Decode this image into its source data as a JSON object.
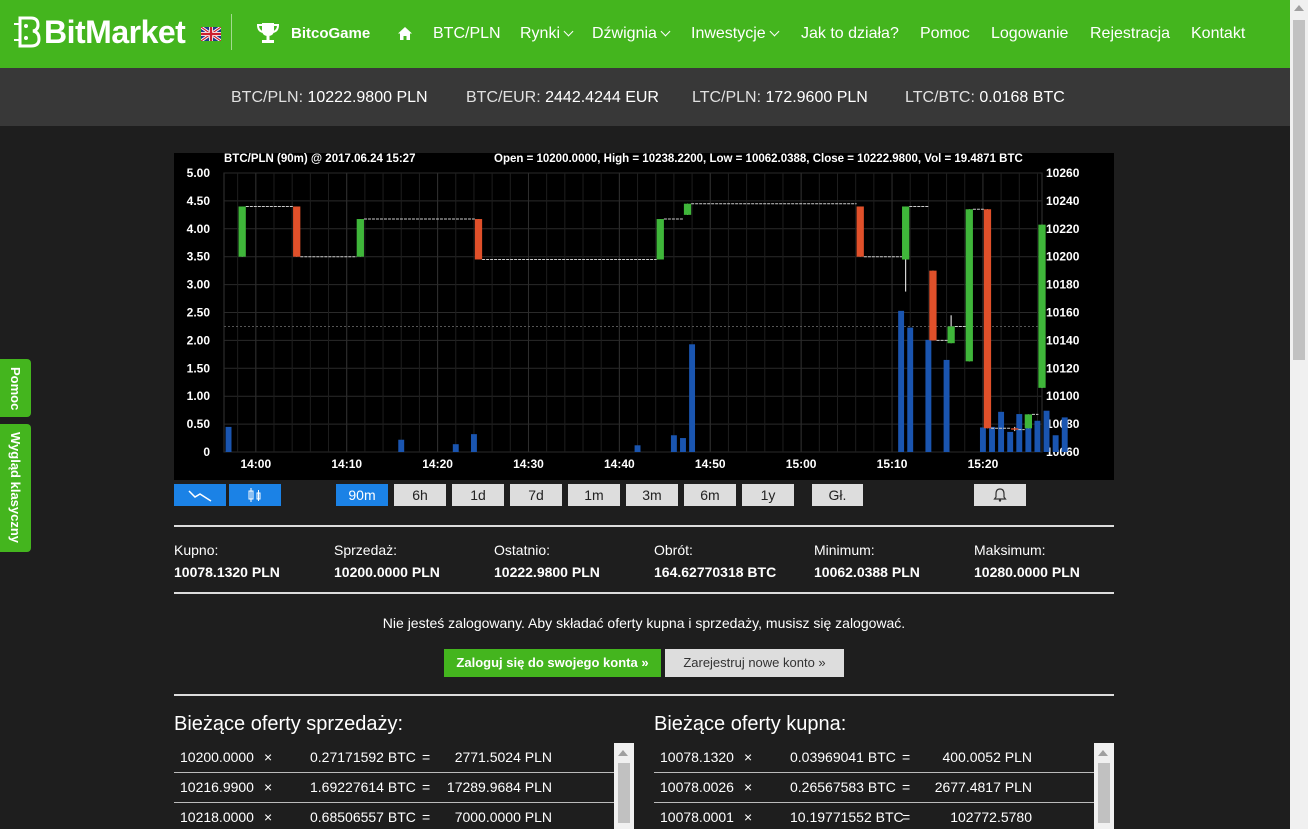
{
  "brand": {
    "name": "BitMarket"
  },
  "nav": {
    "game": "BitcoGame",
    "items": [
      {
        "label": "BTC/PLN",
        "dropdown": false
      },
      {
        "label": "Rynki",
        "dropdown": true
      },
      {
        "label": "Dźwignia",
        "dropdown": true
      },
      {
        "label": "Inwestycje",
        "dropdown": true
      },
      {
        "label": "Jak to działa?",
        "dropdown": false
      },
      {
        "label": "Pomoc",
        "dropdown": false
      },
      {
        "label": "Logowanie",
        "dropdown": false
      },
      {
        "label": "Rejestracja",
        "dropdown": false
      },
      {
        "label": "Kontakt",
        "dropdown": false
      }
    ]
  },
  "ticker": [
    {
      "pair": "BTC/PLN:",
      "value": "10222.9800 PLN"
    },
    {
      "pair": "BTC/EUR:",
      "value": "2442.4244 EUR"
    },
    {
      "pair": "LTC/PLN:",
      "value": "172.9600 PLN"
    },
    {
      "pair": "LTC/BTC:",
      "value": "0.0168 BTC"
    }
  ],
  "side_tabs": {
    "help": "Pomoc",
    "classic": "Wygląd klasyczny"
  },
  "chart_data": {
    "type": "candlestick",
    "title": "BTC/PLN (90m) @ 2017.06.24 15:27",
    "summary": "Open = 10200.0000, High = 10238.2200, Low = 10062.0388, Close = 10222.9800, Vol = 19.4871 BTC",
    "x_ticks": [
      "14:00",
      "14:10",
      "14:20",
      "14:30",
      "14:40",
      "14:50",
      "15:00",
      "15:10",
      "15:20"
    ],
    "x_tick_minutes": [
      0,
      10,
      20,
      30,
      40,
      50,
      60,
      70,
      80
    ],
    "xlim": [
      -3.5,
      86.5
    ],
    "volume_axis": {
      "ticks": [
        "5.00",
        "4.50",
        "4.00",
        "3.50",
        "3.00",
        "2.50",
        "2.00",
        "1.50",
        "1.00",
        "0.50",
        "0"
      ],
      "ylim": [
        0,
        5
      ]
    },
    "price_axis": {
      "ticks": [
        "10260",
        "10240",
        "10220",
        "10200",
        "10180",
        "10160",
        "10140",
        "10120",
        "10100",
        "10080",
        "10060"
      ],
      "ylim": [
        10060,
        10260
      ]
    },
    "midline": 10150,
    "candles": [
      {
        "t": -1.5,
        "o": 10200,
        "c": 10236,
        "h": 10236,
        "l": 10200
      },
      {
        "t": 4.5,
        "o": 10236,
        "c": 10200,
        "h": 10236,
        "l": 10200
      },
      {
        "t": 11.5,
        "o": 10200,
        "c": 10227,
        "h": 10227,
        "l": 10200
      },
      {
        "t": 24.5,
        "o": 10227,
        "c": 10198,
        "h": 10227,
        "l": 10198
      },
      {
        "t": 44.5,
        "o": 10198,
        "c": 10227,
        "h": 10227,
        "l": 10198
      },
      {
        "t": 47.5,
        "o": 10230,
        "c": 10238,
        "h": 10238,
        "l": 10230
      },
      {
        "t": 66.5,
        "o": 10236,
        "c": 10200,
        "h": 10236,
        "l": 10200
      },
      {
        "t": 71.5,
        "o": 10198,
        "c": 10236,
        "h": 10236,
        "l": 10175
      },
      {
        "t": 74.5,
        "o": 10190,
        "c": 10140,
        "h": 10190,
        "l": 10140
      },
      {
        "t": 76.5,
        "o": 10138,
        "c": 10150,
        "h": 10158,
        "l": 10138
      },
      {
        "t": 78.5,
        "o": 10125,
        "c": 10234,
        "h": 10234,
        "l": 10125
      },
      {
        "t": 80.5,
        "o": 10234,
        "c": 10077,
        "h": 10234,
        "l": 10077
      },
      {
        "t": 83.5,
        "o": 10077,
        "c": 10076,
        "h": 10078,
        "l": 10075
      },
      {
        "t": 85,
        "o": 10077,
        "c": 10087,
        "h": 10087,
        "l": 10077
      },
      {
        "t": 86.5,
        "o": 10106,
        "c": 10222.98,
        "h": 10222.98,
        "l": 10106
      }
    ],
    "volumes": [
      {
        "t": -3,
        "v": 0.45
      },
      {
        "t": 16,
        "v": 0.22
      },
      {
        "t": 22,
        "v": 0.14
      },
      {
        "t": 24,
        "v": 0.32
      },
      {
        "t": 42,
        "v": 0.12
      },
      {
        "t": 46,
        "v": 0.3
      },
      {
        "t": 47,
        "v": 0.25
      },
      {
        "t": 48,
        "v": 1.93
      },
      {
        "t": 71,
        "v": 2.53
      },
      {
        "t": 72,
        "v": 2.23
      },
      {
        "t": 74,
        "v": 2.01
      },
      {
        "t": 76,
        "v": 1.65
      },
      {
        "t": 80,
        "v": 0.44
      },
      {
        "t": 81,
        "v": 0.45
      },
      {
        "t": 82,
        "v": 0.72
      },
      {
        "t": 83,
        "v": 0.36
      },
      {
        "t": 84,
        "v": 0.68
      },
      {
        "t": 85,
        "v": 0.44
      },
      {
        "t": 86,
        "v": 0.56
      },
      {
        "t": 87,
        "v": 0.74
      },
      {
        "t": 88,
        "v": 0.3
      },
      {
        "t": 89,
        "v": 0.62
      }
    ],
    "colors": {
      "up": "#3fb63a",
      "down": "#e0502a",
      "volume": "#1a55b0",
      "grid": "#2a2a2a"
    }
  },
  "chart_type_buttons": [
    {
      "name": "line-chart-button",
      "icon": "line-chart-icon",
      "active": true
    },
    {
      "name": "candle-chart-button",
      "icon": "candlestick-icon",
      "active": true
    }
  ],
  "range_buttons": [
    {
      "label": "90m",
      "active": true
    },
    {
      "label": "6h",
      "active": false
    },
    {
      "label": "1d",
      "active": false
    },
    {
      "label": "7d",
      "active": false
    },
    {
      "label": "1m",
      "active": false
    },
    {
      "label": "3m",
      "active": false
    },
    {
      "label": "6m",
      "active": false
    },
    {
      "label": "1y",
      "active": false
    }
  ],
  "depth_button": "Gł.",
  "alert_button": {
    "icon": "bell-icon"
  },
  "stats": [
    {
      "label": "Kupno:",
      "value": "10078.1320 PLN"
    },
    {
      "label": "Sprzedaż:",
      "value": "10200.0000 PLN"
    },
    {
      "label": "Ostatnio:",
      "value": "10222.9800 PLN"
    },
    {
      "label": "Obrót:",
      "value": "164.62770318 BTC"
    },
    {
      "label": "Minimum:",
      "value": "10062.0388 PLN"
    },
    {
      "label": "Maksimum:",
      "value": "10280.0000 PLN"
    }
  ],
  "login_notice": "Nie jesteś zalogowany. Aby składać oferty kupna i sprzedaży, musisz się zalogować.",
  "login_button": "Zaloguj się do swojego konta »",
  "register_button": "Zarejestruj nowe konto »",
  "sell_offers": {
    "title": "Bieżące oferty sprzedaży:",
    "rows": [
      {
        "price": "10200.0000",
        "x": "×",
        "amount": "0.27171592 BTC",
        "eq": "=",
        "total": "2771.5024 PLN"
      },
      {
        "price": "10216.9900",
        "x": "×",
        "amount": "1.69227614 BTC",
        "eq": "=",
        "total": "17289.9684 PLN"
      },
      {
        "price": "10218.0000",
        "x": "×",
        "amount": "0.68506557 BTC",
        "eq": "=",
        "total": "7000.0000 PLN"
      }
    ]
  },
  "buy_offers": {
    "title": "Bieżące oferty kupna:",
    "rows": [
      {
        "price": "10078.1320",
        "x": "×",
        "amount": "0.03969041 BTC",
        "eq": "=",
        "total": "400.0052 PLN"
      },
      {
        "price": "10078.0026",
        "x": "×",
        "amount": "0.26567583 BTC",
        "eq": "=",
        "total": "2677.4817 PLN"
      },
      {
        "price": "10078.0001",
        "x": "×",
        "amount": "10.19771552 BTC",
        "eq": "=",
        "total": "102772.5780"
      }
    ]
  }
}
